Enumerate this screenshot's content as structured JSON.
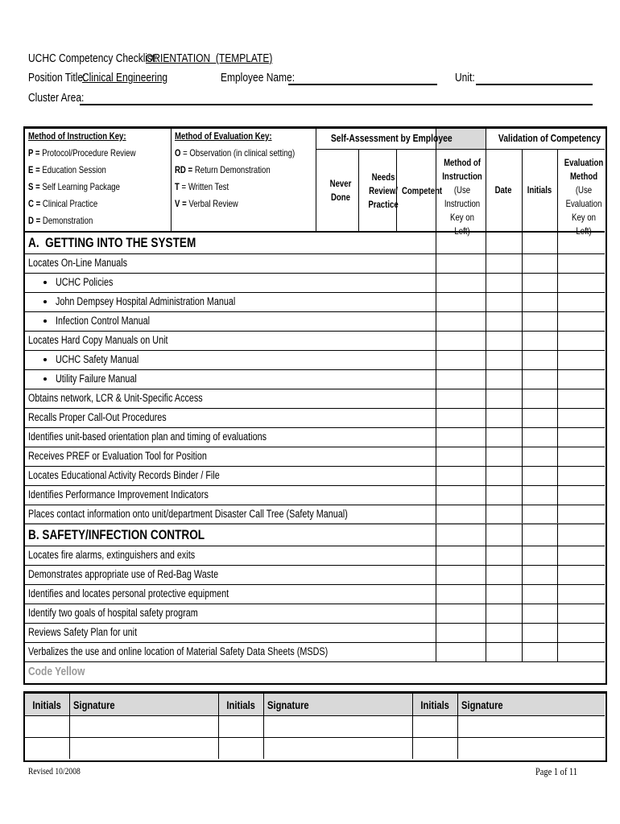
{
  "header": {
    "title_label": "UCHC Competency Checklist:",
    "title_value": "ORIENTATION  (TEMPLATE)",
    "position_label": "Position Title:",
    "position_value": "Clinical Engineering",
    "employee_label": "Employee Name:",
    "unit_label": "Unit:",
    "cluster_label": "Cluster Area:"
  },
  "keys": {
    "instruction": {
      "title": "Method of Instruction Key:",
      "items": [
        {
          "code": "P =",
          "text": "Protocol/Procedure Review"
        },
        {
          "code": "E =",
          "text": "Education Session"
        },
        {
          "code": "S =",
          "text": "Self Learning Package"
        },
        {
          "code": "C =",
          "text": "Clinical Practice"
        },
        {
          "code": "D =",
          "text": "Demonstration"
        }
      ]
    },
    "evaluation": {
      "title": "Method of Evaluation Key:",
      "items": [
        {
          "code": "O",
          "text": "= Observation (in clinical setting)"
        },
        {
          "code": "RD =",
          "text": "Return Demonstration"
        },
        {
          "code": "T",
          "text": "= Written Test"
        },
        {
          "code": "V =",
          "text": "Verbal Review"
        }
      ]
    }
  },
  "columns": {
    "self_assessment": {
      "title": "Self-Assessment by Employee",
      "columns": [
        "Never Done",
        "Needs Review/ Practice",
        "Competent"
      ]
    },
    "validation": {
      "title": "Validation of Competency"
    },
    "method_instruction": {
      "title": "Method of Instruction",
      "note": "(Use Instruction Key on Left)"
    },
    "date": "Date",
    "initials": "Initials",
    "evaluation_method": {
      "title": "Evaluation Method",
      "note": "(Use Evaluation Key on Left)"
    }
  },
  "sections": [
    {
      "title": "A.  GETTING INTO THE SYSTEM",
      "items": [
        {
          "text": "Locates On-Line Manuals",
          "bullet": false
        },
        {
          "text": "UCHC Policies",
          "bullet": true
        },
        {
          "text": "John Dempsey Hospital Administration Manual",
          "bullet": true
        },
        {
          "text": "Infection Control Manual",
          "bullet": true
        },
        {
          "text": "Locates Hard Copy Manuals on Unit",
          "bullet": false
        },
        {
          "text": "UCHC Safety Manual",
          "bullet": true
        },
        {
          "text": "Utility Failure Manual",
          "bullet": true
        },
        {
          "text": "Obtains network, LCR & Unit-Specific Access",
          "bullet": false
        },
        {
          "text": "Recalls Proper Call-Out Procedures",
          "bullet": false
        },
        {
          "text": "Identifies unit-based orientation plan and timing of evaluations",
          "bullet": false
        },
        {
          "text": "Receives PREF or Evaluation Tool for Position",
          "bullet": false
        },
        {
          "text": "Locates Educational Activity Records Binder / File",
          "bullet": false
        },
        {
          "text": "Identifies Performance Improvement Indicators",
          "bullet": false
        },
        {
          "text": "Places contact information onto unit/department Disaster Call Tree (Safety Manual)",
          "bullet": false
        }
      ]
    },
    {
      "title": "B. SAFETY/INFECTION CONTROL",
      "items": [
        {
          "text": "Locates fire alarms, extinguishers and exits",
          "bullet": false
        },
        {
          "text": "Demonstrates appropriate use of Red-Bag Waste",
          "bullet": false
        },
        {
          "text": "Identifies and locates personal protective equipment",
          "bullet": false
        },
        {
          "text": "Identify two goals of hospital safety program",
          "bullet": false
        },
        {
          "text": "Reviews Safety Plan for unit",
          "bullet": false
        },
        {
          "text": "Verbalizes the use and online location of Material Safety Data Sheets (MSDS)",
          "bullet": false
        }
      ],
      "subheading": "Code Yellow"
    }
  ],
  "signature": {
    "headers": [
      "Initials",
      "Signature",
      "Initials",
      "Signature",
      "Initials",
      "Signature"
    ]
  },
  "footer": {
    "revised": "Revised 10/2008",
    "page": "Page 1 of 11"
  }
}
